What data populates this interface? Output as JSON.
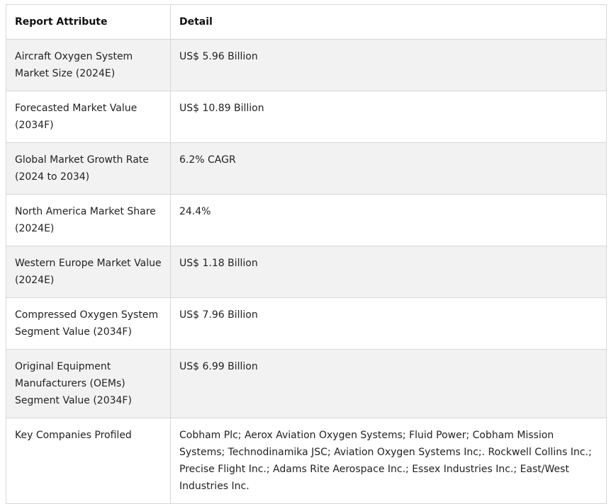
{
  "table": {
    "headers": [
      "Report Attribute",
      "Detail"
    ],
    "rows": [
      {
        "attribute": "Aircraft Oxygen System Market Size (2024E)",
        "detail": "US$ 5.96 Billion"
      },
      {
        "attribute": "Forecasted Market Value (2034F)",
        "detail": "US$ 10.89 Billion"
      },
      {
        "attribute": "Global Market Growth Rate (2024 to 2034)",
        "detail": "6.2% CAGR"
      },
      {
        "attribute": "North America Market Share (2024E)",
        "detail": "24.4%"
      },
      {
        "attribute": "Western Europe Market Value (2024E)",
        "detail": "US$ 1.18 Billion"
      },
      {
        "attribute": "Compressed Oxygen System Segment Value (2034F)",
        "detail": "US$ 7.96 Billion"
      },
      {
        "attribute": "Original Equipment Manufacturers (OEMs) Segment Value (2034F)",
        "detail": "US$ 6.99 Billion"
      },
      {
        "attribute": "Key Companies Profiled",
        "detail": "Cobham Plc; Aerox Aviation Oxygen Systems; Fluid Power; Cobham Mission Systems; Technodinamika JSC; Aviation Oxygen Systems Inc;. Rockwell Collins Inc.; Precise Flight Inc.; Adams Rite Aerospace Inc.; Essex Industries Inc.; East/West Industries Inc."
      }
    ]
  }
}
